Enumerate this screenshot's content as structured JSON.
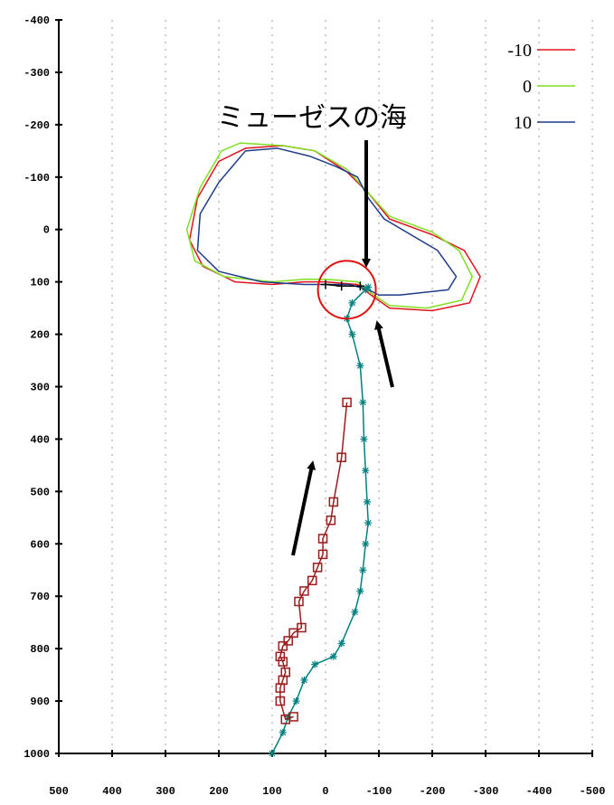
{
  "chart_data": {
    "type": "line",
    "title": "",
    "xlabel": "",
    "ylabel": "",
    "xlim": [
      500,
      -500
    ],
    "ylim": [
      -400,
      1000
    ],
    "x_ticks": [
      "500",
      "400",
      "300",
      "200",
      "100",
      "0",
      "-100",
      "-200",
      "-300",
      "-400",
      "-500"
    ],
    "y_ticks": [
      "-400",
      "-300",
      "-200",
      "-100",
      "0",
      "100",
      "200",
      "300",
      "400",
      "500",
      "600",
      "700",
      "800",
      "900",
      "1000"
    ],
    "grid": "vertical-dashed",
    "legend_position": "top-right",
    "annotation": {
      "text": "ミューゼスの海"
    },
    "series": [
      {
        "name": "-10",
        "color": "#e0141e",
        "points": [
          [
            40,
            100
          ],
          [
            100,
            105
          ],
          [
            170,
            100
          ],
          [
            230,
            70
          ],
          [
            255,
            20
          ],
          [
            240,
            -60
          ],
          [
            200,
            -130
          ],
          [
            150,
            -155
          ],
          [
            80,
            -160
          ],
          [
            20,
            -150
          ],
          [
            -40,
            -110
          ],
          [
            -80,
            -70
          ],
          [
            -120,
            -20
          ],
          [
            -200,
            10
          ],
          [
            -260,
            40
          ],
          [
            -290,
            90
          ],
          [
            -270,
            140
          ],
          [
            -200,
            155
          ],
          [
            -120,
            150
          ],
          [
            -85,
            125
          ],
          [
            -60,
            105
          ],
          [
            0,
            100
          ],
          [
            40,
            100
          ]
        ]
      },
      {
        "name": "0",
        "color": "#7fe020",
        "points": [
          [
            40,
            95
          ],
          [
            100,
            100
          ],
          [
            190,
            90
          ],
          [
            245,
            60
          ],
          [
            260,
            0
          ],
          [
            235,
            -80
          ],
          [
            195,
            -150
          ],
          [
            160,
            -165
          ],
          [
            80,
            -160
          ],
          [
            20,
            -150
          ],
          [
            -40,
            -115
          ],
          [
            -80,
            -70
          ],
          [
            -120,
            -25
          ],
          [
            -200,
            5
          ],
          [
            -250,
            40
          ],
          [
            -275,
            90
          ],
          [
            -255,
            135
          ],
          [
            -190,
            150
          ],
          [
            -120,
            145
          ],
          [
            -90,
            125
          ],
          [
            -60,
            100
          ],
          [
            0,
            95
          ],
          [
            40,
            95
          ]
        ]
      },
      {
        "name": "10",
        "color": "#1e3c8c",
        "points": [
          [
            40,
            105
          ],
          [
            120,
            100
          ],
          [
            200,
            80
          ],
          [
            240,
            40
          ],
          [
            235,
            -30
          ],
          [
            200,
            -90
          ],
          [
            150,
            -150
          ],
          [
            90,
            -155
          ],
          [
            30,
            -140
          ],
          [
            -20,
            -120
          ],
          [
            -60,
            -100
          ],
          [
            -80,
            -60
          ],
          [
            -110,
            -20
          ],
          [
            -160,
            10
          ],
          [
            -210,
            40
          ],
          [
            -245,
            90
          ],
          [
            -230,
            115
          ],
          [
            -140,
            125
          ],
          [
            -100,
            125
          ],
          [
            -80,
            115
          ],
          [
            -45,
            105
          ],
          [
            0,
            105
          ],
          [
            40,
            105
          ]
        ]
      },
      {
        "name": "",
        "color": "#008080",
        "marker": "asterisk",
        "points": [
          [
            100,
            1000
          ],
          [
            80,
            960
          ],
          [
            70,
            930
          ],
          [
            55,
            900
          ],
          [
            40,
            860
          ],
          [
            20,
            830
          ],
          [
            -15,
            815
          ],
          [
            -30,
            790
          ],
          [
            -55,
            730
          ],
          [
            -65,
            690
          ],
          [
            -70,
            650
          ],
          [
            -75,
            600
          ],
          [
            -80,
            560
          ],
          [
            -78,
            520
          ],
          [
            -75,
            460
          ],
          [
            -72,
            400
          ],
          [
            -70,
            330
          ],
          [
            -65,
            260
          ],
          [
            -50,
            200
          ],
          [
            -40,
            170
          ],
          [
            -50,
            140
          ],
          [
            -75,
            115
          ],
          [
            -80,
            110
          ]
        ]
      },
      {
        "name": "",
        "color": "#9b1c1c",
        "marker": "square",
        "points": [
          [
            -40,
            330
          ],
          [
            -30,
            435
          ],
          [
            -15,
            520
          ],
          [
            -10,
            555
          ],
          [
            5,
            590
          ],
          [
            5,
            620
          ],
          [
            15,
            645
          ],
          [
            25,
            670
          ],
          [
            40,
            690
          ],
          [
            50,
            710
          ],
          [
            45,
            760
          ],
          [
            60,
            770
          ],
          [
            70,
            785
          ],
          [
            80,
            795
          ],
          [
            85,
            815
          ],
          [
            80,
            825
          ],
          [
            75,
            845
          ],
          [
            80,
            860
          ],
          [
            85,
            875
          ],
          [
            85,
            900
          ],
          [
            75,
            935
          ],
          [
            60,
            930
          ]
        ]
      },
      {
        "name": "",
        "color": "#000000",
        "marker": "plus",
        "points": [
          [
            0,
            105
          ],
          [
            -30,
            108
          ],
          [
            -65,
            108
          ]
        ]
      }
    ]
  }
}
